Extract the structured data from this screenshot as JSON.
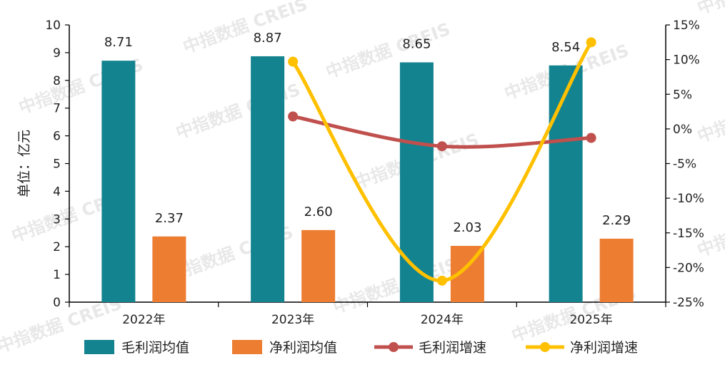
{
  "watermark": "中指数据 CREIS",
  "chart_data": {
    "type": "bar",
    "categories": [
      "2022年",
      "2023年",
      "2024年",
      "2025年"
    ],
    "ylabel": "单位：亿元",
    "ylim": [
      0,
      10
    ],
    "yticks": [
      0,
      1,
      2,
      3,
      4,
      5,
      6,
      7,
      8,
      9,
      10
    ],
    "y2lim": [
      -25,
      15
    ],
    "y2ticks": [
      "-25%",
      "-20%",
      "-15%",
      "-10%",
      "-5%",
      "0%",
      "5%",
      "10%",
      "15%"
    ],
    "legend_position": "bottom",
    "grid": false,
    "series": [
      {
        "name": "毛利润均值",
        "type": "bar",
        "axis": "left",
        "color": "#12838F",
        "values": [
          8.71,
          8.87,
          8.65,
          8.54
        ],
        "labels": [
          "8.71",
          "8.87",
          "8.65",
          "8.54"
        ]
      },
      {
        "name": "净利润均值",
        "type": "bar",
        "axis": "left",
        "color": "#ED7D31",
        "values": [
          2.37,
          2.6,
          2.03,
          2.29
        ],
        "labels": [
          "2.37",
          "2.60",
          "2.03",
          "2.29"
        ]
      },
      {
        "name": "毛利润增速",
        "type": "line",
        "axis": "right",
        "color": "#C0504D",
        "values": [
          null,
          1.8,
          -2.5,
          -1.3
        ]
      },
      {
        "name": "净利润增速",
        "type": "line",
        "axis": "right",
        "color": "#FFC000",
        "values": [
          null,
          9.7,
          -21.9,
          12.5
        ]
      }
    ]
  }
}
